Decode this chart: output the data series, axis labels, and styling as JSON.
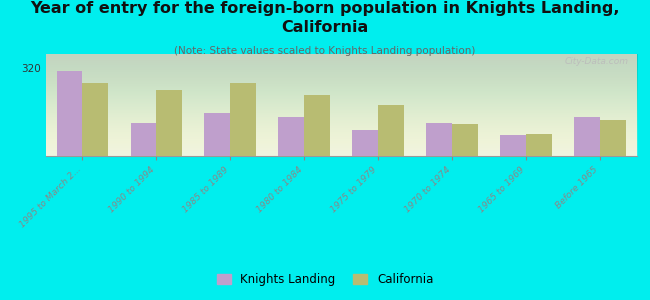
{
  "title": "Year of entry for the foreign-born population in Knights Landing,\nCalifornia",
  "subtitle": "(Note: State values scaled to Knights Landing population)",
  "categories": [
    "1995 to March 2...",
    "1990 to 1994",
    "1985 to 1989",
    "1980 to 1984",
    "1975 to 1979",
    "1970 to 1974",
    "1965 to 1969",
    "Before 1965"
  ],
  "knights_landing": [
    310,
    120,
    155,
    140,
    95,
    120,
    75,
    140
  ],
  "california": [
    265,
    240,
    265,
    220,
    185,
    115,
    80,
    130
  ],
  "kl_color": "#bf9fcc",
  "ca_color": "#b8bc72",
  "background_color": "#00eeee",
  "plot_bg_color": "#eef2e0",
  "ylim": [
    0,
    370
  ],
  "yticks": [
    0,
    320
  ],
  "bar_width": 0.35,
  "title_fontsize": 11.5,
  "subtitle_fontsize": 7.5,
  "tick_fontsize": 6.5,
  "legend_fontsize": 8.5,
  "watermark": "City-Data.com"
}
